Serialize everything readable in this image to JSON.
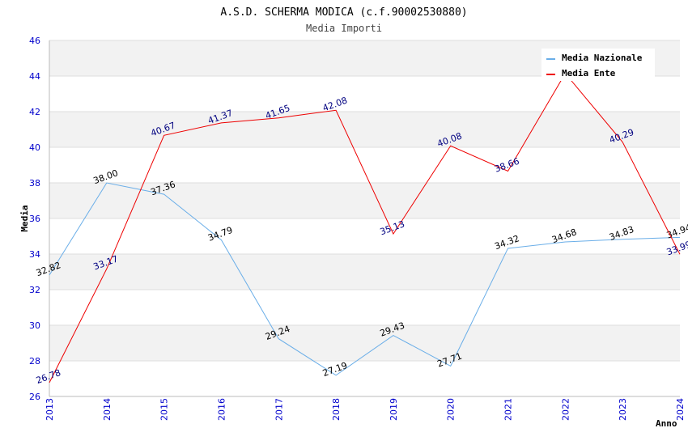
{
  "chart_data": {
    "type": "line",
    "title": "A.S.D. SCHERMA MODICA (c.f.90002530880)",
    "subtitle": "Media Importi",
    "xlabel": "Anno",
    "ylabel": "Media",
    "x": [
      "2013",
      "2014",
      "2015",
      "2016",
      "2017",
      "2018",
      "2019",
      "2020",
      "2021",
      "2022",
      "2023",
      "2024"
    ],
    "ylim": [
      26,
      46
    ],
    "yticks": [
      "26",
      "28",
      "30",
      "32",
      "34",
      "36",
      "38",
      "40",
      "42",
      "44",
      "46"
    ],
    "grid": true,
    "legend_position": "top-right",
    "series": [
      {
        "name": "Media Nazionale",
        "color": "#6aaee8",
        "label_color": "#000000",
        "values": [
          32.82,
          38.0,
          37.36,
          34.79,
          29.24,
          27.19,
          29.43,
          27.71,
          34.32,
          34.68,
          34.83,
          34.94
        ],
        "labels": [
          "32.82",
          "38.00",
          "37.36",
          "34.79",
          "29.24",
          "27.19",
          "29.43",
          "27.71",
          "34.32",
          "34.68",
          "34.83",
          "34.94"
        ]
      },
      {
        "name": "Media Ente",
        "color": "#ee0000",
        "label_color": "#000080",
        "values": [
          26.78,
          33.17,
          40.67,
          41.37,
          41.65,
          42.08,
          35.13,
          40.08,
          38.66,
          44.15,
          40.29,
          33.99
        ],
        "labels": [
          "26.78",
          "33.17",
          "40.67",
          "41.37",
          "41.65",
          "42.08",
          "35.13",
          "40.08",
          "38.66",
          "",
          "40.29",
          "33.99"
        ]
      }
    ]
  },
  "colors": {
    "axis_tick_text": "#0000cc",
    "band_fill": "#f2f2f2",
    "grid_line": "#dddddd"
  }
}
